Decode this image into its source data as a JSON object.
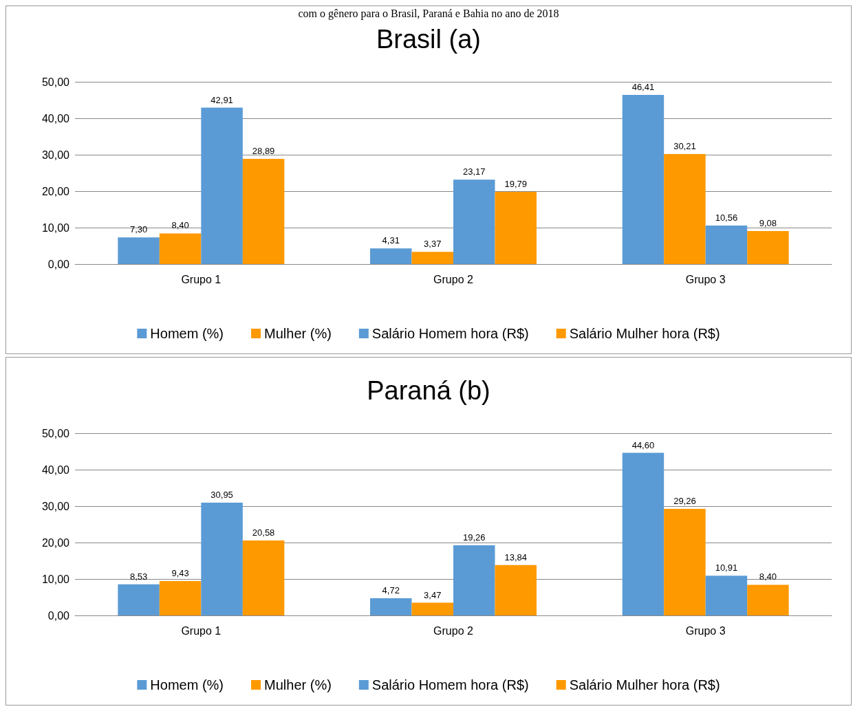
{
  "chart_data": [
    {
      "type": "bar",
      "title": "Brasil (a)",
      "annotations": [
        "com o gênero para o Brasil, Paraná e Bahia no ano de 2018"
      ],
      "categories": [
        "Grupo 1",
        "Grupo 2",
        "Grupo 3"
      ],
      "series": [
        {
          "name": "Homem (%)",
          "color": "#5b9bd5",
          "values": [
            7.3,
            4.31,
            46.41
          ],
          "value_labels": [
            "7,30",
            "4,31",
            "46,41"
          ]
        },
        {
          "name": "Mulher (%)",
          "color": "#ff9900",
          "values": [
            8.4,
            3.37,
            30.21
          ],
          "value_labels": [
            "8,40",
            "3,37",
            "30,21"
          ]
        },
        {
          "name": "Salário Homem hora (R$)",
          "color": "#5b9bd5",
          "values": [
            42.91,
            23.17,
            10.56
          ],
          "value_labels": [
            "42,91",
            "23,17",
            "10,56"
          ]
        },
        {
          "name": "Salário Mulher hora (R$)",
          "color": "#ff9900",
          "values": [
            28.89,
            19.79,
            9.08
          ],
          "value_labels": [
            "28,89",
            "19,79",
            "9,08"
          ]
        }
      ],
      "ylim": [
        0,
        50
      ],
      "yticks": [
        {
          "value": 0,
          "label": "0,00"
        },
        {
          "value": 10,
          "label": "10,00"
        },
        {
          "value": 20,
          "label": "20,00"
        },
        {
          "value": 30,
          "label": "30,00"
        },
        {
          "value": 40,
          "label": "40,00"
        },
        {
          "value": 50,
          "label": "50,00"
        }
      ],
      "grid": "y",
      "legend": "bottom"
    },
    {
      "type": "bar",
      "title": "Paraná (b)",
      "categories": [
        "Grupo 1",
        "Grupo 2",
        "Grupo 3"
      ],
      "series": [
        {
          "name": "Homem (%)",
          "color": "#5b9bd5",
          "values": [
            8.53,
            4.72,
            44.6
          ],
          "value_labels": [
            "8,53",
            "4,72",
            "44,60"
          ]
        },
        {
          "name": "Mulher (%)",
          "color": "#ff9900",
          "values": [
            9.43,
            3.47,
            29.26
          ],
          "value_labels": [
            "9,43",
            "3,47",
            "29,26"
          ]
        },
        {
          "name": "Salário Homem hora (R$)",
          "color": "#5b9bd5",
          "values": [
            30.95,
            19.26,
            10.91
          ],
          "value_labels": [
            "30,95",
            "19,26",
            "10,91"
          ]
        },
        {
          "name": "Salário Mulher hora (R$)",
          "color": "#ff9900",
          "values": [
            20.58,
            13.84,
            8.4
          ],
          "value_labels": [
            "20,58",
            "13,84",
            "8,40"
          ]
        }
      ],
      "ylim": [
        0,
        50
      ],
      "yticks": [
        {
          "value": 0,
          "label": "0,00"
        },
        {
          "value": 10,
          "label": "10,00"
        },
        {
          "value": 20,
          "label": "20,00"
        },
        {
          "value": 30,
          "label": "30,00"
        },
        {
          "value": 40,
          "label": "40,00"
        },
        {
          "value": 50,
          "label": "50,00"
        }
      ],
      "grid": "y",
      "legend": "bottom"
    }
  ]
}
